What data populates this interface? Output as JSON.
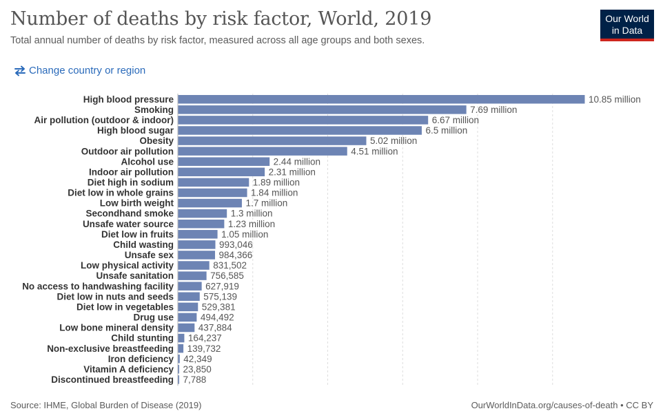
{
  "header": {
    "title": "Number of deaths by risk factor, World, 2019",
    "subtitle": "Total annual number of deaths by risk factor, measured across all age groups and both sexes.",
    "logo_line1": "Our World",
    "logo_line2": "in Data",
    "change_region_label": "Change country or region"
  },
  "footer": {
    "source": "Source: IHME, Global Burden of Disease (2019)",
    "license": "OurWorldInData.org/causes-of-death • CC BY"
  },
  "colors": {
    "bar": "#6d84b4",
    "grid": "#dddddd",
    "label": "#333333",
    "value": "#555555",
    "logo_bg": "#002147",
    "logo_accent": "#ce261e",
    "link": "#2a6aba"
  },
  "icons": {
    "change_region": "swap-arrows-icon"
  },
  "chart_data": {
    "type": "bar",
    "orientation": "horizontal",
    "title": "Number of deaths by risk factor, World, 2019",
    "grid": true,
    "xlim": [
      0,
      11000000
    ],
    "categories": [
      "High blood pressure",
      "Smoking",
      "Air pollution (outdoor & indoor)",
      "High blood sugar",
      "Obesity",
      "Outdoor air pollution",
      "Alcohol use",
      "Indoor air pollution",
      "Diet high in sodium",
      "Diet low in whole grains",
      "Low birth weight",
      "Secondhand smoke",
      "Unsafe water source",
      "Diet low in fruits",
      "Child wasting",
      "Unsafe sex",
      "Low physical activity",
      "Unsafe sanitation",
      "No access to handwashing facility",
      "Diet low in nuts and seeds",
      "Diet low in vegetables",
      "Drug use",
      "Low bone mineral density",
      "Child stunting",
      "Non-exclusive breastfeeding",
      "Iron deficiency",
      "Vitamin A deficiency",
      "Discontinued breastfeeding"
    ],
    "values": [
      10850000,
      7690000,
      6670000,
      6500000,
      5020000,
      4510000,
      2440000,
      2310000,
      1890000,
      1840000,
      1700000,
      1300000,
      1230000,
      1050000,
      993046,
      984366,
      831502,
      756585,
      627919,
      575139,
      529381,
      494492,
      437884,
      164237,
      139732,
      42349,
      23850,
      7788
    ],
    "value_labels": [
      "10.85 million",
      "7.69 million",
      "6.67 million",
      "6.5 million",
      "5.02 million",
      "4.51 million",
      "2.44 million",
      "2.31 million",
      "1.89 million",
      "1.84 million",
      "1.7 million",
      "1.3 million",
      "1.23 million",
      "1.05 million",
      "993,046",
      "984,366",
      "831,502",
      "756,585",
      "627,919",
      "575,139",
      "529,381",
      "494,492",
      "437,884",
      "164,237",
      "139,732",
      "42,349",
      "23,850",
      "7,788"
    ]
  }
}
